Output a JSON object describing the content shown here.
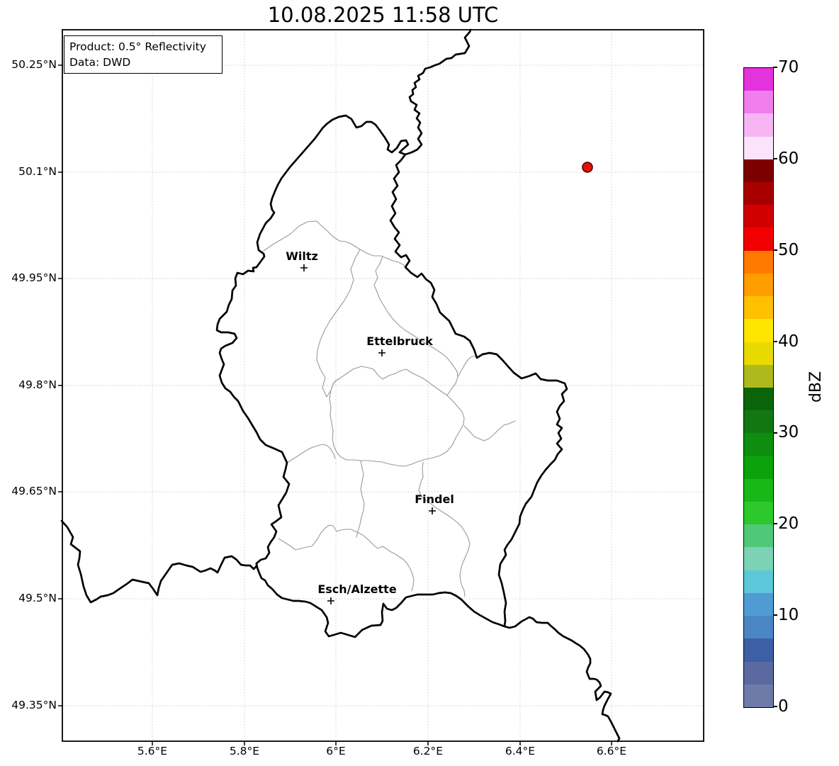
{
  "title": "10.08.2025 11:58 UTC",
  "info_box": {
    "product_line": "Product: 0.5° Reflectivity",
    "data_line": "Data: DWD"
  },
  "axes": {
    "lat_ticks": [
      "50.25°N",
      "50.1°N",
      "49.95°N",
      "49.8°N",
      "49.65°N",
      "49.5°N",
      "49.35°N"
    ],
    "lon_ticks": [
      "5.6°E",
      "5.8°E",
      "6°E",
      "6.2°E",
      "6.4°E",
      "6.6°E"
    ]
  },
  "cities": [
    {
      "name": "Wiltz"
    },
    {
      "name": "Ettelbruck"
    },
    {
      "name": "Findel"
    },
    {
      "name": "Esch/Alzette"
    }
  ],
  "radar_marker": {
    "fill": "#e3120b",
    "edge": "#550000"
  },
  "colorbar": {
    "label": "dBZ",
    "tick_labels": [
      "70",
      "60",
      "50",
      "40",
      "30",
      "20",
      "10",
      "0"
    ],
    "unit_min": 0,
    "unit_max": 70,
    "step": 2.5,
    "colors_bottom_to_top": [
      "#6e7aa8",
      "#5a6aa0",
      "#3e5ea6",
      "#4a86c4",
      "#4f9cd2",
      "#5cc8da",
      "#7cd2b4",
      "#4fc878",
      "#2cc82c",
      "#18b818",
      "#0ba30b",
      "#0e8e0e",
      "#117811",
      "#0a650a",
      "#aeb91c",
      "#e8da00",
      "#ffe600",
      "#ffc000",
      "#ff9c00",
      "#ff7a00",
      "#f20000",
      "#d00000",
      "#a80000",
      "#7c0000",
      "#fbe4fb",
      "#f7b6f3",
      "#f07eec",
      "#e432dc"
    ]
  }
}
